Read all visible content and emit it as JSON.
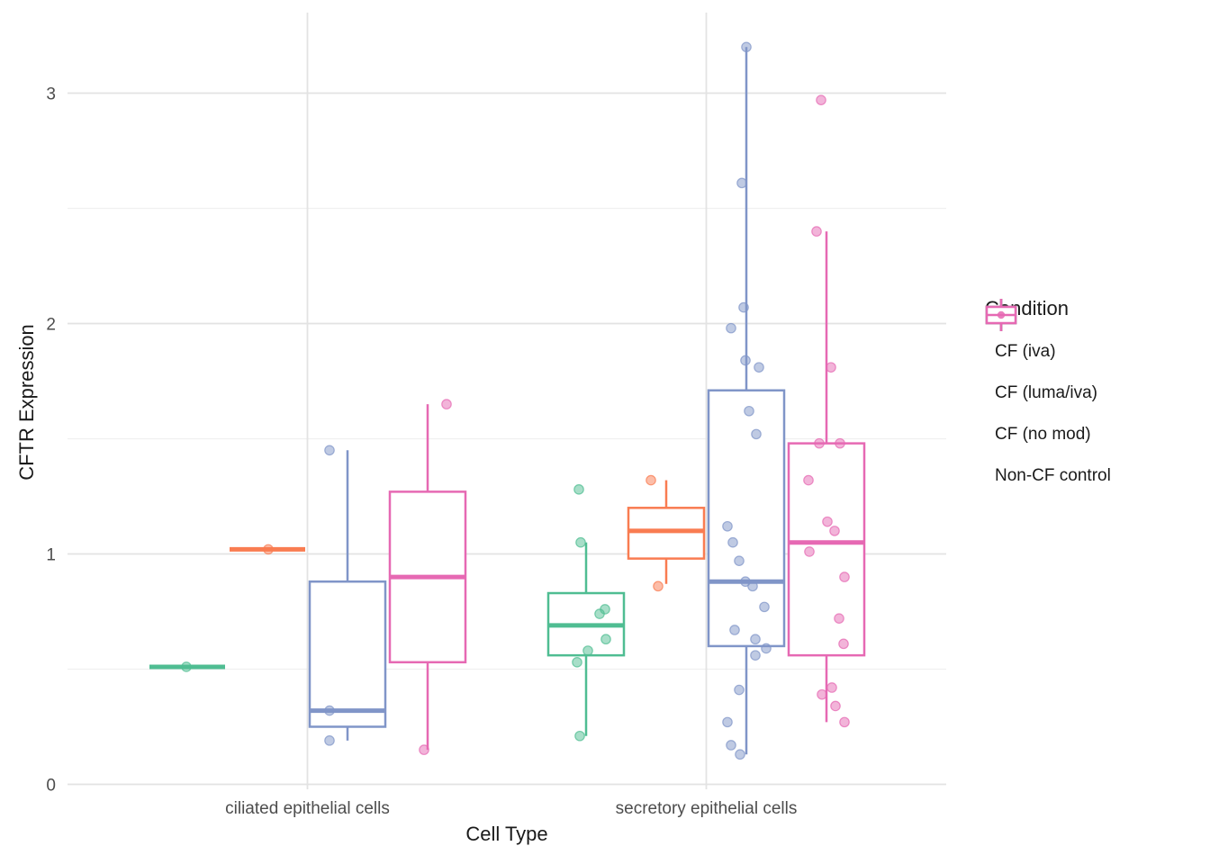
{
  "chart_data": {
    "type": "boxplot",
    "xlabel": "Cell Type",
    "ylabel": "CFTR Expression",
    "categories": [
      "ciliated epithelial cells",
      "secretory epithelial cells"
    ],
    "y_axis": {
      "tick_labels": [
        "0",
        "1",
        "2",
        "3"
      ],
      "tick_values": [
        0,
        1,
        2,
        3
      ],
      "minor_values": [
        0.5,
        1.5,
        2.5
      ],
      "ylim": [
        -0.03,
        3.35
      ],
      "grid": "on"
    },
    "legend": {
      "title": "Condition",
      "position": "right",
      "entries": [
        "CF (iva)",
        "CF (luma/iva)",
        "CF (no mod)",
        "Non-CF control"
      ]
    },
    "groups": [
      {
        "name": "CF (iva)",
        "color": "#4FBD92"
      },
      {
        "name": "CF (luma/iva)",
        "color": "#F97C51"
      },
      {
        "name": "CF (no mod)",
        "color": "#8095C8"
      },
      {
        "name": "Non-CF control",
        "color": "#E669B3"
      }
    ],
    "cells": [
      {
        "category": "ciliated epithelial cells",
        "stats": [
          {
            "group": "CF (iva)",
            "low": 0.51,
            "q1": 0.51,
            "median": 0.51,
            "q3": 0.51,
            "high": 0.51,
            "points": [
              [
                0.51,
                -1
              ]
            ]
          },
          {
            "group": "CF (luma/iva)",
            "low": 1.02,
            "q1": 1.02,
            "median": 1.02,
            "q3": 1.02,
            "high": 1.02,
            "points": [
              [
                1.02,
                1
              ]
            ]
          },
          {
            "group": "CF (no mod)",
            "low": 0.19,
            "q1": 0.25,
            "median": 0.32,
            "q3": 0.88,
            "high": 1.45,
            "points": [
              [
                1.45,
                -20
              ],
              [
                0.32,
                -20
              ],
              [
                0.19,
                -20
              ]
            ]
          },
          {
            "group": "Non-CF control",
            "low": 0.15,
            "q1": 0.53,
            "median": 0.9,
            "q3": 1.27,
            "high": 1.65,
            "points": [
              [
                1.65,
                21
              ],
              [
                0.15,
                -4
              ]
            ]
          }
        ]
      },
      {
        "category": "secretory epithelial cells",
        "stats": [
          {
            "group": "CF (iva)",
            "low": 0.21,
            "q1": 0.56,
            "median": 0.69,
            "q3": 0.83,
            "high": 1.05,
            "points": [
              [
                1.28,
                -8
              ],
              [
                1.05,
                -6
              ],
              [
                0.76,
                21
              ],
              [
                0.74,
                15
              ],
              [
                0.63,
                22
              ],
              [
                0.58,
                2
              ],
              [
                0.53,
                -10
              ],
              [
                0.21,
                -7
              ]
            ]
          },
          {
            "group": "CF (luma/iva)",
            "low": 0.87,
            "q1": 0.98,
            "median": 1.1,
            "q3": 1.2,
            "high": 1.32,
            "points": [
              [
                1.32,
                -17
              ],
              [
                0.86,
                -9
              ]
            ]
          },
          {
            "group": "CF (no mod)",
            "low": 0.13,
            "q1": 0.6,
            "median": 0.88,
            "q3": 1.71,
            "high": 3.2,
            "points": [
              [
                3.2,
                0
              ],
              [
                2.61,
                -5
              ],
              [
                2.07,
                -3
              ],
              [
                1.98,
                -17
              ],
              [
                1.84,
                -1
              ],
              [
                1.81,
                14
              ],
              [
                1.62,
                3
              ],
              [
                1.52,
                11
              ],
              [
                1.12,
                -21
              ],
              [
                1.05,
                -15
              ],
              [
                0.97,
                -8
              ],
              [
                0.88,
                -1
              ],
              [
                0.86,
                7
              ],
              [
                0.77,
                20
              ],
              [
                0.67,
                -13
              ],
              [
                0.63,
                10
              ],
              [
                0.59,
                22
              ],
              [
                0.56,
                10
              ],
              [
                0.41,
                -8
              ],
              [
                0.27,
                -21
              ],
              [
                0.17,
                -17
              ],
              [
                0.13,
                -7
              ]
            ]
          },
          {
            "group": "Non-CF control",
            "low": 0.27,
            "q1": 0.56,
            "median": 1.05,
            "q3": 1.48,
            "high": 2.4,
            "points": [
              [
                2.97,
                -6
              ],
              [
                2.4,
                -11
              ],
              [
                1.81,
                5
              ],
              [
                1.48,
                -8
              ],
              [
                1.48,
                15
              ],
              [
                1.32,
                -20
              ],
              [
                1.14,
                1
              ],
              [
                1.1,
                9
              ],
              [
                1.01,
                -19
              ],
              [
                0.9,
                20
              ],
              [
                0.72,
                14
              ],
              [
                0.61,
                19
              ],
              [
                0.42,
                6
              ],
              [
                0.39,
                -5
              ],
              [
                0.34,
                10
              ],
              [
                0.27,
                20
              ]
            ]
          }
        ]
      }
    ],
    "style": {
      "grid_major_color": "#e3e3e3",
      "grid_minor_color": "#f0f0f0",
      "box_fill": "#ffffff",
      "tick_text_color": "#4d4d4d",
      "title_text_color": "#1a1a1a"
    }
  }
}
